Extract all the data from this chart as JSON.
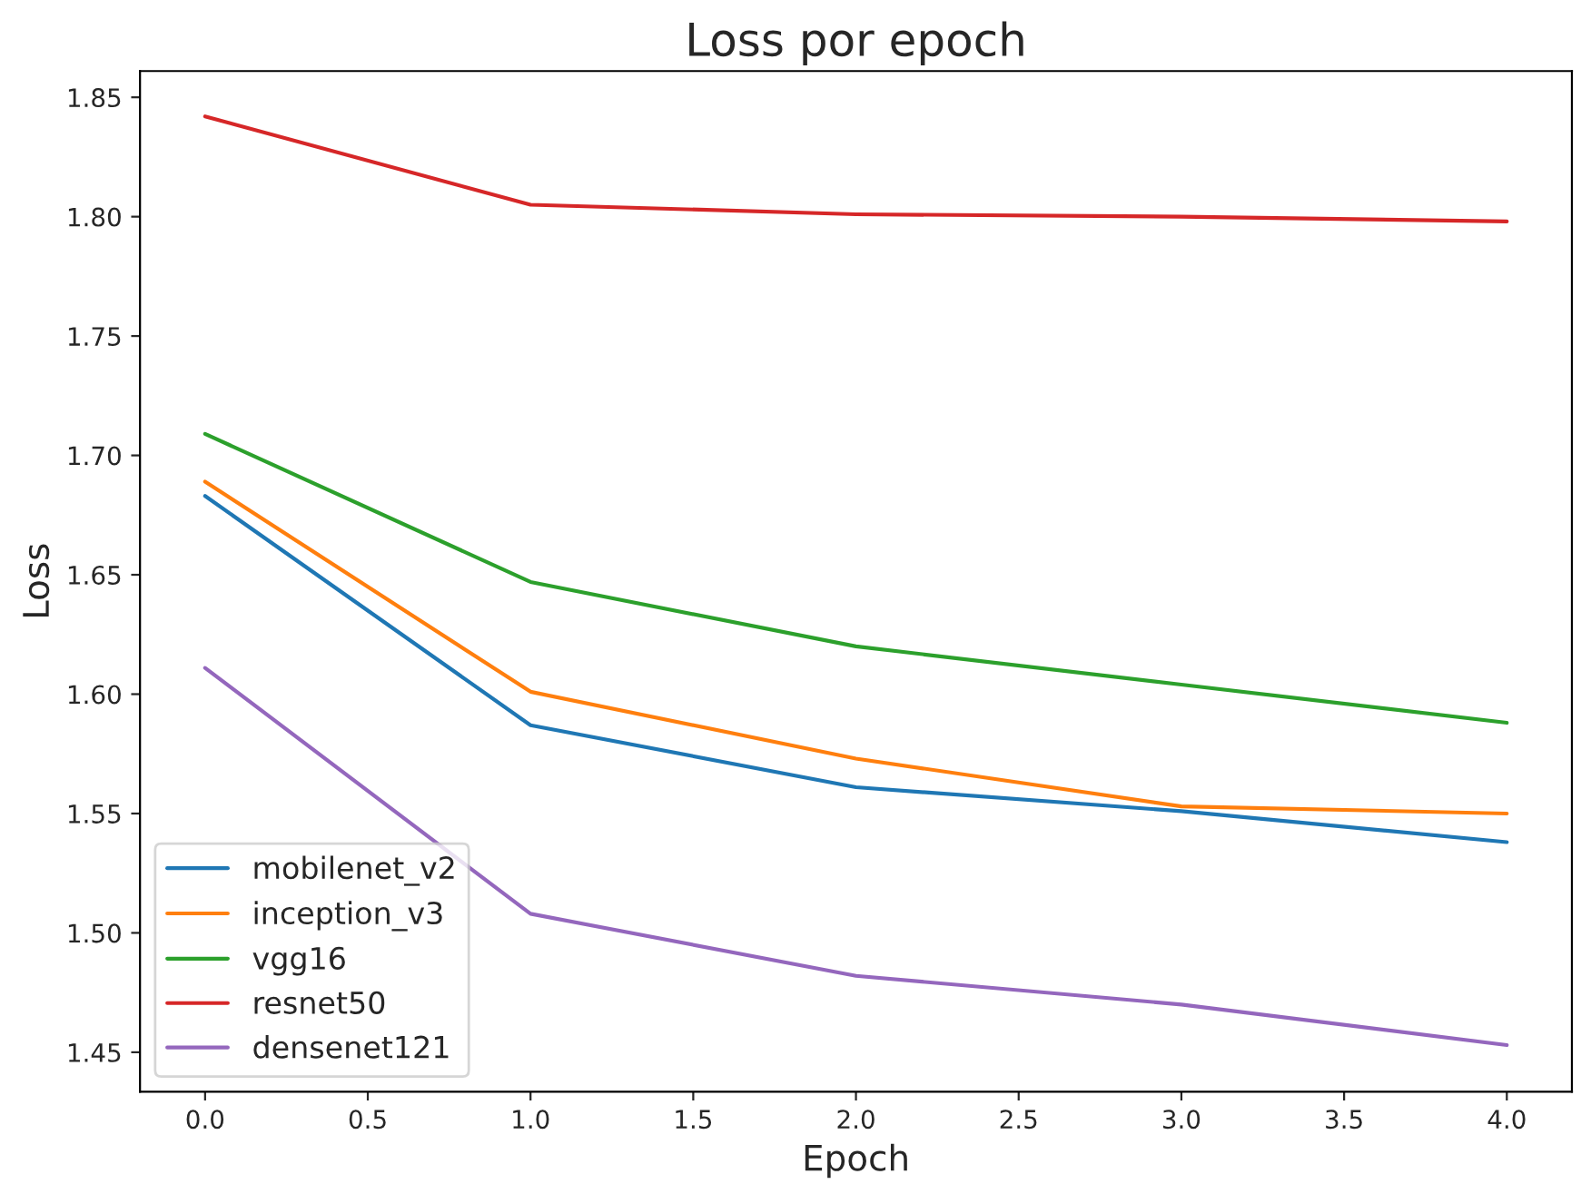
{
  "chart_data": {
    "type": "line",
    "title": "Loss por epoch",
    "xlabel": "Epoch",
    "ylabel": "Loss",
    "x": [
      0,
      1,
      2,
      3,
      4
    ],
    "series": [
      {
        "name": "mobilenet_v2",
        "color": "#1f77b4",
        "values": [
          1.683,
          1.587,
          1.561,
          1.551,
          1.538
        ]
      },
      {
        "name": "inception_v3",
        "color": "#ff7f0e",
        "values": [
          1.689,
          1.601,
          1.573,
          1.553,
          1.55
        ]
      },
      {
        "name": "vgg16",
        "color": "#2ca02c",
        "values": [
          1.709,
          1.647,
          1.62,
          1.604,
          1.588
        ]
      },
      {
        "name": "resnet50",
        "color": "#d62728",
        "values": [
          1.842,
          1.805,
          1.801,
          1.8,
          1.798
        ]
      },
      {
        "name": "densenet121",
        "color": "#9467bd",
        "values": [
          1.611,
          1.508,
          1.482,
          1.47,
          1.453
        ]
      }
    ],
    "xlim": [
      -0.2,
      4.2
    ],
    "xticks": [
      {
        "value": 0,
        "label": "0.0"
      },
      {
        "value": 0.5,
        "label": "0.5"
      },
      {
        "value": 1,
        "label": "1.0"
      },
      {
        "value": 1.5,
        "label": "1.5"
      },
      {
        "value": 2,
        "label": "2.0"
      },
      {
        "value": 2.5,
        "label": "2.5"
      },
      {
        "value": 3,
        "label": "3.0"
      },
      {
        "value": 3.5,
        "label": "3.5"
      },
      {
        "value": 4,
        "label": "4.0"
      }
    ],
    "ylim": [
      1.4335,
      1.861
    ],
    "yticks": [
      {
        "value": 1.45,
        "label": "1.45"
      },
      {
        "value": 1.5,
        "label": "1.50"
      },
      {
        "value": 1.55,
        "label": "1.55"
      },
      {
        "value": 1.6,
        "label": "1.60"
      },
      {
        "value": 1.65,
        "label": "1.65"
      },
      {
        "value": 1.7,
        "label": "1.70"
      },
      {
        "value": 1.75,
        "label": "1.75"
      },
      {
        "value": 1.8,
        "label": "1.80"
      },
      {
        "value": 1.85,
        "label": "1.85"
      }
    ],
    "legend": "lower left",
    "grid": false,
    "marker": "none",
    "line_style": "solid"
  }
}
